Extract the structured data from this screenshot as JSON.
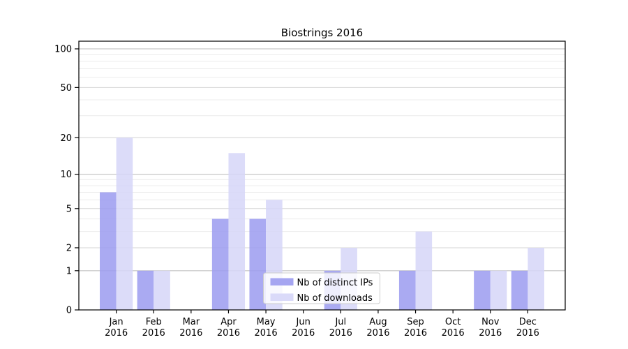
{
  "chart_data": {
    "type": "bar",
    "title": "Biostrings 2016",
    "categories": [
      "Jan",
      "Feb",
      "Mar",
      "Apr",
      "May",
      "Jun",
      "Jul",
      "Aug",
      "Sep",
      "Oct",
      "Nov",
      "Dec"
    ],
    "year_label": "2016",
    "series": [
      {
        "name": "Nb of distinct IPs",
        "color": "#9b9bf0",
        "values": [
          7,
          1,
          0,
          4,
          4,
          0,
          1,
          0,
          1,
          0,
          1,
          1
        ]
      },
      {
        "name": "Nb of downloads",
        "color": "#d6d6f8",
        "values": [
          20,
          1,
          0,
          15,
          6,
          0,
          2,
          0,
          3,
          0,
          1,
          2
        ]
      }
    ],
    "yscale": "log10(1+x)",
    "yticks": [
      0,
      1,
      2,
      5,
      10,
      20,
      50,
      100
    ],
    "minor_gridlines": [
      3,
      4,
      6,
      7,
      8,
      9,
      30,
      40,
      60,
      70,
      80,
      90
    ],
    "ylim": [
      0,
      115
    ],
    "xlabel": "",
    "ylabel": "",
    "grid": "horizontal",
    "legend_position": "lower center"
  },
  "colors": {
    "grid_major": "#b8b8b8",
    "grid_mid": "#d4d4d4",
    "grid_minor": "#ececec",
    "spine": "#000000",
    "legend_border": "#cccccc",
    "background": "#ffffff"
  }
}
